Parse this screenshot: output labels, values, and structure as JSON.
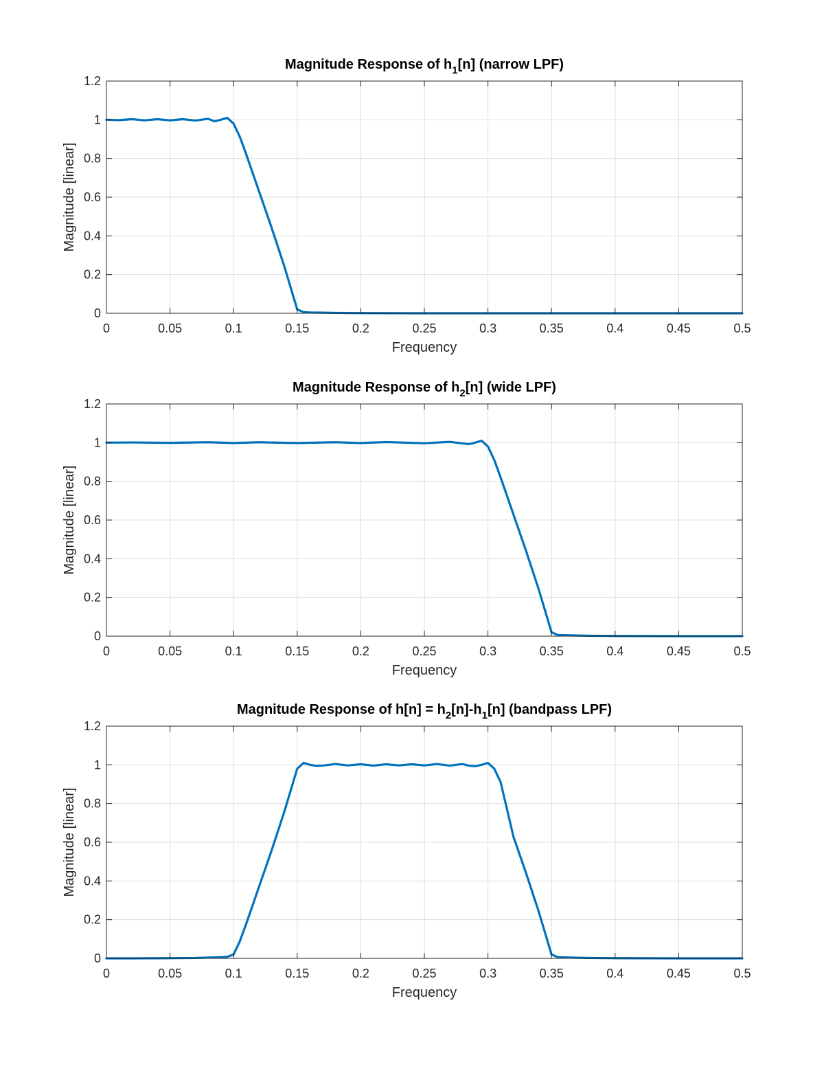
{
  "colors": {
    "series": "#0072BD"
  },
  "chart_data": [
    {
      "type": "line",
      "title": {
        "main": "Magnitude Response of h",
        "sub": "1",
        "tail": "[n] (narrow LPF)"
      },
      "xlabel": "Frequency",
      "ylabel": "Magnitude [linear]",
      "xlim": [
        0,
        0.5
      ],
      "ylim": [
        0,
        1.2
      ],
      "xticks": [
        0,
        0.05,
        0.1,
        0.15,
        0.2,
        0.25,
        0.3,
        0.35,
        0.4,
        0.45,
        0.5
      ],
      "xtick_labels": [
        "0",
        "0.05",
        "0.1",
        "0.15",
        "0.2",
        "0.25",
        "0.3",
        "0.35",
        "0.4",
        "0.45",
        "0.5"
      ],
      "yticks": [
        0,
        0.2,
        0.4,
        0.6,
        0.8,
        1,
        1.2
      ],
      "ytick_labels": [
        "0",
        "0.2",
        "0.4",
        "0.6",
        "0.8",
        "1",
        "1.2"
      ],
      "grid": true,
      "series": [
        {
          "x": [
            0,
            0.01,
            0.02,
            0.03,
            0.04,
            0.05,
            0.06,
            0.07,
            0.08,
            0.085,
            0.09,
            0.095,
            0.1,
            0.105,
            0.11,
            0.12,
            0.13,
            0.14,
            0.145,
            0.15,
            0.155,
            0.16,
            0.17,
            0.18,
            0.2,
            0.25,
            0.3,
            0.35,
            0.4,
            0.45,
            0.5
          ],
          "y": [
            1.0,
            0.998,
            1.003,
            0.997,
            1.003,
            0.997,
            1.003,
            0.996,
            1.005,
            0.992,
            1.0,
            1.01,
            0.98,
            0.91,
            0.82,
            0.63,
            0.44,
            0.24,
            0.13,
            0.02,
            0.006,
            0.004,
            0.003,
            0.002,
            0.001,
            0.0,
            0.0,
            0.0,
            0.0,
            0.0,
            0.0
          ]
        }
      ]
    },
    {
      "type": "line",
      "title": {
        "main": "Magnitude Response of h",
        "sub": "2",
        "tail": "[n] (wide LPF)"
      },
      "xlabel": "Frequency",
      "ylabel": "Magnitude [linear]",
      "xlim": [
        0,
        0.5
      ],
      "ylim": [
        0,
        1.2
      ],
      "xticks": [
        0,
        0.05,
        0.1,
        0.15,
        0.2,
        0.25,
        0.3,
        0.35,
        0.4,
        0.45,
        0.5
      ],
      "xtick_labels": [
        "0",
        "0.05",
        "0.1",
        "0.15",
        "0.2",
        "0.25",
        "0.3",
        "0.35",
        "0.4",
        "0.45",
        "0.5"
      ],
      "yticks": [
        0,
        0.2,
        0.4,
        0.6,
        0.8,
        1,
        1.2
      ],
      "ytick_labels": [
        "0",
        "0.2",
        "0.4",
        "0.6",
        "0.8",
        "1",
        "1.2"
      ],
      "grid": true,
      "series": [
        {
          "x": [
            0,
            0.02,
            0.05,
            0.08,
            0.1,
            0.12,
            0.15,
            0.18,
            0.2,
            0.22,
            0.25,
            0.27,
            0.28,
            0.285,
            0.29,
            0.295,
            0.3,
            0.305,
            0.31,
            0.32,
            0.33,
            0.34,
            0.345,
            0.35,
            0.355,
            0.36,
            0.37,
            0.38,
            0.4,
            0.45,
            0.5
          ],
          "y": [
            1.0,
            1.001,
            0.999,
            1.002,
            0.998,
            1.002,
            0.998,
            1.002,
            0.998,
            1.003,
            0.997,
            1.004,
            0.996,
            0.992,
            1.0,
            1.01,
            0.98,
            0.91,
            0.82,
            0.63,
            0.44,
            0.24,
            0.13,
            0.02,
            0.006,
            0.005,
            0.003,
            0.002,
            0.001,
            0.0,
            0.0
          ]
        }
      ]
    },
    {
      "type": "line",
      "title": {
        "main": "Magnitude Response of h[n] = h",
        "sub": "2",
        "mid": "[n]-h",
        "sub2": "1",
        "tail": "[n] (bandpass LPF)"
      },
      "xlabel": "Frequency",
      "ylabel": "Magnitude [linear]",
      "xlim": [
        0,
        0.5
      ],
      "ylim": [
        0,
        1.2
      ],
      "xticks": [
        0,
        0.05,
        0.1,
        0.15,
        0.2,
        0.25,
        0.3,
        0.35,
        0.4,
        0.45,
        0.5
      ],
      "xtick_labels": [
        "0",
        "0.05",
        "0.1",
        "0.15",
        "0.2",
        "0.25",
        "0.3",
        "0.35",
        "0.4",
        "0.45",
        "0.5"
      ],
      "yticks": [
        0,
        0.2,
        0.4,
        0.6,
        0.8,
        1,
        1.2
      ],
      "ytick_labels": [
        "0",
        "0.2",
        "0.4",
        "0.6",
        "0.8",
        "1",
        "1.2"
      ],
      "grid": true,
      "series": [
        {
          "x": [
            0,
            0.02,
            0.05,
            0.07,
            0.08,
            0.09,
            0.095,
            0.1,
            0.105,
            0.11,
            0.12,
            0.13,
            0.14,
            0.145,
            0.15,
            0.155,
            0.16,
            0.165,
            0.17,
            0.18,
            0.19,
            0.2,
            0.21,
            0.22,
            0.23,
            0.24,
            0.25,
            0.26,
            0.27,
            0.28,
            0.285,
            0.29,
            0.295,
            0.3,
            0.305,
            0.31,
            0.32,
            0.33,
            0.34,
            0.345,
            0.35,
            0.355,
            0.36,
            0.37,
            0.38,
            0.4,
            0.45,
            0.5
          ],
          "y": [
            0.0,
            0.0,
            0.001,
            0.002,
            0.004,
            0.006,
            0.008,
            0.02,
            0.09,
            0.18,
            0.37,
            0.56,
            0.76,
            0.87,
            0.98,
            1.01,
            1.0,
            0.995,
            0.996,
            1.004,
            0.997,
            1.003,
            0.996,
            1.003,
            0.997,
            1.003,
            0.997,
            1.004,
            0.996,
            1.004,
            0.996,
            0.993,
            1.0,
            1.01,
            0.98,
            0.91,
            0.63,
            0.44,
            0.24,
            0.13,
            0.02,
            0.006,
            0.005,
            0.003,
            0.002,
            0.001,
            0.0,
            0.0
          ]
        }
      ]
    }
  ]
}
